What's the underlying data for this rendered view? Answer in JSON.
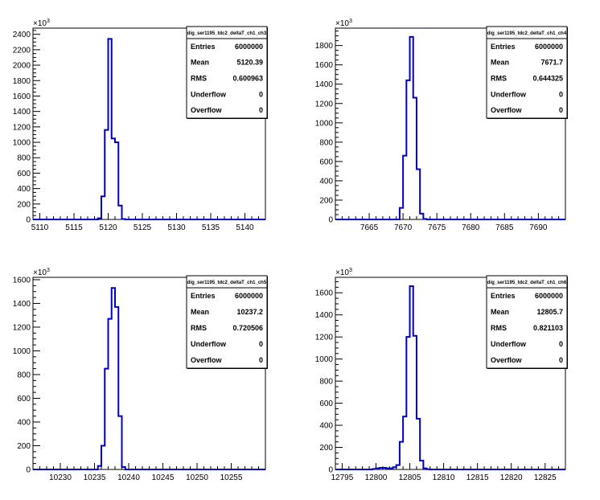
{
  "chart_data": [
    {
      "type": "histogram",
      "exponent_label": "×10",
      "exponent_power": "3",
      "xlim": [
        5109,
        5143
      ],
      "ylim": [
        0,
        2480
      ],
      "y_scale": 1000,
      "x_ticks": [
        "5110",
        "5115",
        "5120",
        "5125",
        "5130",
        "5135",
        "5140"
      ],
      "y_ticks": [
        "0",
        "200",
        "400",
        "600",
        "800",
        "1000",
        "1200",
        "1400",
        "1600",
        "1800",
        "2000",
        "2200",
        "2400"
      ],
      "bin_width": 0.5,
      "bins_x": [
        5118.5,
        5119,
        5119.5,
        5120,
        5120.5,
        5121,
        5121.5,
        5122
      ],
      "bins_y": [
        15000,
        300000,
        1160000,
        2340000,
        1050000,
        1000000,
        180000,
        5000
      ],
      "stats": {
        "title": "dig_ser1195_tdc2_deltaT_ch1_ch3",
        "rows": [
          {
            "name": "Entries",
            "value": "6000000"
          },
          {
            "name": "Mean",
            "value": "5120.39"
          },
          {
            "name": "RMS",
            "value": "0.600963"
          },
          {
            "name": "Underflow",
            "value": "0"
          },
          {
            "name": "Overflow",
            "value": "0"
          }
        ]
      },
      "line_color": "#0000cc"
    },
    {
      "type": "histogram",
      "exponent_label": "×10",
      "exponent_power": "3",
      "xlim": [
        7660,
        7694
      ],
      "ylim": [
        0,
        1980
      ],
      "y_scale": 1000,
      "x_ticks": [
        "7665",
        "7670",
        "7675",
        "7680",
        "7685",
        "7690"
      ],
      "y_ticks": [
        "0",
        "200",
        "400",
        "600",
        "800",
        "1000",
        "1200",
        "1400",
        "1600",
        "1800"
      ],
      "bin_width": 0.5,
      "bins_x": [
        7669.5,
        7670,
        7670.5,
        7671,
        7671.5,
        7672,
        7672.5,
        7673
      ],
      "bins_y": [
        120000,
        660000,
        1440000,
        1890000,
        1260000,
        520000,
        60000,
        5000
      ],
      "stats": {
        "title": "dig_ser1195_tdc2_deltaT_ch1_ch4",
        "rows": [
          {
            "name": "Entries",
            "value": "6000000"
          },
          {
            "name": "Mean",
            "value": "7671.7"
          },
          {
            "name": "RMS",
            "value": "0.644325"
          },
          {
            "name": "Underflow",
            "value": "0"
          },
          {
            "name": "Overflow",
            "value": "0"
          }
        ]
      },
      "line_color": "#0000cc"
    },
    {
      "type": "histogram",
      "exponent_label": "×10",
      "exponent_power": "3",
      "xlim": [
        10226,
        10260
      ],
      "ylim": [
        0,
        1620
      ],
      "y_scale": 1000,
      "x_ticks": [
        "10230",
        "10235",
        "10240",
        "10245",
        "10250",
        "10255"
      ],
      "y_ticks": [
        "0",
        "200",
        "400",
        "600",
        "800",
        "1000",
        "1200",
        "1400",
        "1600"
      ],
      "bin_width": 0.5,
      "bins_x": [
        10235.5,
        10236,
        10236.5,
        10237,
        10237.5,
        10238,
        10238.5,
        10239
      ],
      "bins_y": [
        30000,
        200000,
        850000,
        1270000,
        1530000,
        1370000,
        450000,
        20000
      ],
      "stats": {
        "title": "dig_ser1195_tdc2_deltaT_ch1_ch5",
        "rows": [
          {
            "name": "Entries",
            "value": "6000000"
          },
          {
            "name": "Mean",
            "value": "10237.2"
          },
          {
            "name": "RMS",
            "value": "0.720506"
          },
          {
            "name": "Underflow",
            "value": "0"
          },
          {
            "name": "Overflow",
            "value": "0"
          }
        ]
      },
      "line_color": "#0000cc"
    },
    {
      "type": "histogram",
      "exponent_label": "×10",
      "exponent_power": "3",
      "xlim": [
        12794,
        12828
      ],
      "ylim": [
        0,
        1740
      ],
      "y_scale": 1000,
      "x_ticks": [
        "12795",
        "12800",
        "12805",
        "12810",
        "12815",
        "12820",
        "12825"
      ],
      "y_ticks": [
        "0",
        "200",
        "400",
        "600",
        "800",
        "1000",
        "1200",
        "1400",
        "1600"
      ],
      "bin_width": 0.5,
      "bins_x": [
        12799.5,
        12800,
        12800.5,
        12801,
        12801.5,
        12802,
        12802.5,
        12803,
        12803.5,
        12804,
        12804.5,
        12805,
        12805.5,
        12806,
        12806.5,
        12807,
        12807.5
      ],
      "bins_y": [
        5000,
        10000,
        15000,
        15000,
        10000,
        10000,
        20000,
        40000,
        250000,
        480000,
        1200000,
        1660000,
        1210000,
        460000,
        80000,
        10000,
        2000
      ],
      "stats": {
        "title": "dig_ser1195_tdc2_deltaT_ch1_ch6",
        "rows": [
          {
            "name": "Entries",
            "value": "6000000"
          },
          {
            "name": "Mean",
            "value": "12805.7"
          },
          {
            "name": "RMS",
            "value": "0.821103"
          },
          {
            "name": "Underflow",
            "value": "0"
          },
          {
            "name": "Overflow",
            "value": "0"
          }
        ]
      },
      "line_color": "#0000cc"
    }
  ]
}
